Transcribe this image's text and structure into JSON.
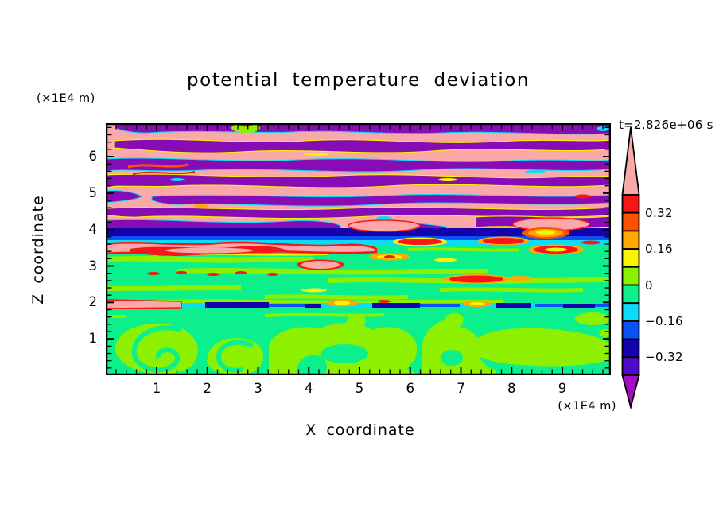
{
  "palette": {
    "pink": "#FBA8A8",
    "red": "#F81616",
    "orangered": "#FB5300",
    "orange": "#FFA800",
    "yellow": "#FBF400",
    "greenyellow": "#8DF000",
    "springgreen": "#0BF08D",
    "cyan": "#0BDDF8",
    "blue": "#0B51F8",
    "navy": "#1502AC",
    "indigo": "#4F0BC9",
    "purple": "#870CB5",
    "purpleArrow": "#A40CC3",
    "frame": "#000000"
  },
  "chart_data": {
    "type": "filled_contour",
    "title": "potential temperature deviation",
    "timestamp": "t=2.826e+06 s",
    "xlabel": "X coordinate",
    "ylabel": "Z coordinate",
    "x_unit": "(×1E4 m)",
    "y_unit": "(×1E4 m)",
    "x_range": [
      0,
      9.96
    ],
    "y_range": [
      0,
      6.92
    ],
    "x_ticks": [
      1,
      2,
      3,
      4,
      5,
      6,
      7,
      8,
      9
    ],
    "y_ticks": [
      1,
      2,
      3,
      4,
      5,
      6
    ],
    "minor_tick_step": 0.2,
    "contour_interval": 0.08,
    "levels": [
      -0.4,
      -0.32,
      -0.24,
      -0.16,
      -0.08,
      0,
      0.08,
      0.16,
      0.24,
      0.32,
      0.4
    ],
    "field_structure": {
      "regions": [
        {
          "z_range": [
            4.1,
            6.92
          ],
          "value_range": "oscillating beyond ±0.4",
          "description": "alternating pink (>+0.40) and purple (<−0.40) wavy horizontal gravity-wave bands with thin rainbow fringes"
        },
        {
          "z_range": [
            3.8,
            4.1
          ],
          "value_range": "−0.40 to −0.16",
          "description": "sharp stable layer: navy, blue and cyan stripes with pink/red fringes above and below"
        },
        {
          "z_range": [
            2.1,
            3.8
          ],
          "value_range": "−0.08 to +0.08",
          "description": "spring-green background with green-yellow streaks and scattered red/orange/pink warm lenses"
        },
        {
          "z_range": [
            1.9,
            2.1
          ],
          "value_range": "mixed −0.4 to +0.3",
          "description": "thin interface: cyan line with navy/blue dashes, orange and pink spots"
        },
        {
          "z_range": [
            0,
            1.9
          ],
          "value_range": "−0.08 to +0.08",
          "description": "convective layer: spring-green with large green-yellow plume swirls"
        }
      ]
    }
  },
  "colorbar": {
    "blocks": [
      "red",
      "orangered",
      "orange",
      "yellow",
      "greenyellow",
      "springgreen",
      "cyan",
      "blue",
      "navy",
      "indigo"
    ],
    "block_ranges": [
      "0.32–0.40",
      "0.24–0.32",
      "0.16–0.24",
      "0.08–0.16",
      "0–0.08",
      "−0.08–0",
      "−0.16–−0.08",
      "−0.24–−0.16",
      "−0.32–−0.24",
      "−0.40–−0.32"
    ],
    "over_color": "pink",
    "under_color": "purpleArrow",
    "labels": [
      {
        "text": "0.32",
        "boundary": 1
      },
      {
        "text": "0.16",
        "boundary": 3
      },
      {
        "text": "0",
        "boundary": 5
      },
      {
        "text": "−0.16",
        "boundary": 7
      },
      {
        "text": "−0.32",
        "boundary": 9
      }
    ]
  }
}
